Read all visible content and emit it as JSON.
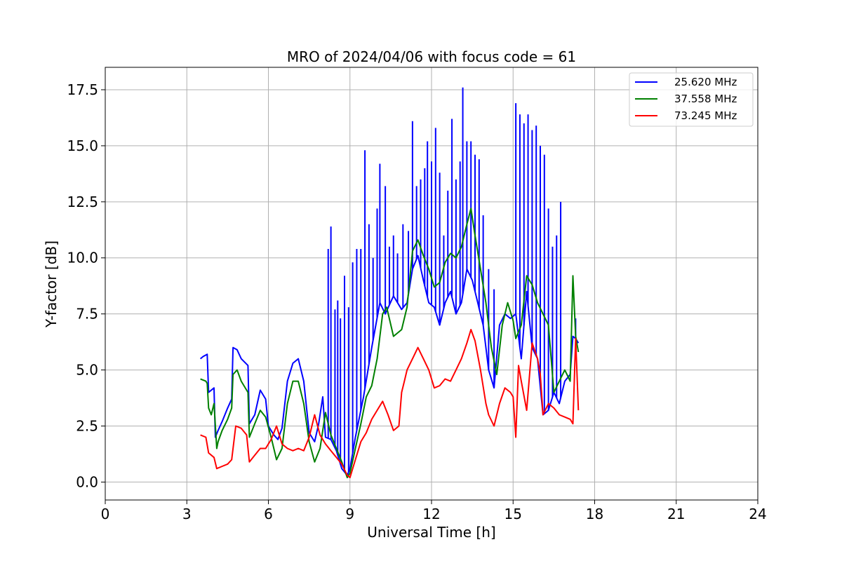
{
  "chart_data": {
    "type": "line",
    "title": "MRO of 2024/04/06 with focus code = 61",
    "xlabel": "Universal Time [h]",
    "ylabel": "Y-factor [dB]",
    "xlim": [
      0,
      24
    ],
    "ylim": [
      -0.8,
      18.5
    ],
    "xticks": [
      0,
      3,
      6,
      9,
      12,
      15,
      18,
      21,
      24
    ],
    "yticks": [
      0.0,
      2.5,
      5.0,
      7.5,
      10.0,
      12.5,
      15.0,
      17.5
    ],
    "xtick_labels": [
      "0",
      "3",
      "6",
      "9",
      "12",
      "15",
      "18",
      "21",
      "24"
    ],
    "ytick_labels": [
      "0.0",
      "2.5",
      "5.0",
      "7.5",
      "10.0",
      "12.5",
      "15.0",
      "17.5"
    ],
    "grid": true,
    "legend_position": "top-right",
    "series": [
      {
        "name": "25.620 MHz",
        "color": "#0000ff",
        "x": [
          3.5,
          3.6,
          3.75,
          3.8,
          4.0,
          4.05,
          4.15,
          4.3,
          4.5,
          4.65,
          4.7,
          4.85,
          5.0,
          5.25,
          5.3,
          5.5,
          5.7,
          5.9,
          6.0,
          6.2,
          6.35,
          6.5,
          6.7,
          6.9,
          7.1,
          7.3,
          7.5,
          7.7,
          7.85,
          8.0,
          8.1,
          8.3,
          8.5,
          8.7,
          8.9,
          9.0,
          9.2,
          9.5,
          9.8,
          10.1,
          10.3,
          10.6,
          10.9,
          11.1,
          11.3,
          11.5,
          11.7,
          11.9,
          12.1,
          12.3,
          12.5,
          12.7,
          12.9,
          13.1,
          13.3,
          13.5,
          13.7,
          13.9,
          14.1,
          14.3,
          14.5,
          14.7,
          14.9,
          15.1,
          15.3,
          15.5,
          15.7,
          15.9,
          16.1,
          16.3,
          16.5,
          16.7,
          16.9,
          17.1,
          17.2,
          17.3,
          17.4
        ],
        "y": [
          5.5,
          5.6,
          5.7,
          4.0,
          4.2,
          2.0,
          2.3,
          2.7,
          3.3,
          3.7,
          6.0,
          5.9,
          5.5,
          5.2,
          2.6,
          3.0,
          4.1,
          3.7,
          2.5,
          2.1,
          1.9,
          2.4,
          4.5,
          5.3,
          5.5,
          4.5,
          2.2,
          1.8,
          2.6,
          3.8,
          2.0,
          1.9,
          1.4,
          0.6,
          0.3,
          0.6,
          2.0,
          3.8,
          6.0,
          8.0,
          7.5,
          8.3,
          7.7,
          8.0,
          9.5,
          10.1,
          9.0,
          8.0,
          7.8,
          7.0,
          8.0,
          8.5,
          7.5,
          8.0,
          9.5,
          9.0,
          8.0,
          7.0,
          5.0,
          4.2,
          7.0,
          7.5,
          7.3,
          7.5,
          5.5,
          8.5,
          6.0,
          5.5,
          3.0,
          3.2,
          4.0,
          3.5,
          4.5,
          4.8,
          6.5,
          6.4,
          6.2
        ],
        "spikes": [
          {
            "x": 8.2,
            "y": 10.4
          },
          {
            "x": 8.3,
            "y": 11.4
          },
          {
            "x": 8.45,
            "y": 7.7
          },
          {
            "x": 8.55,
            "y": 8.1
          },
          {
            "x": 8.65,
            "y": 7.3
          },
          {
            "x": 8.8,
            "y": 9.2
          },
          {
            "x": 8.95,
            "y": 7.8
          },
          {
            "x": 9.1,
            "y": 9.8
          },
          {
            "x": 9.25,
            "y": 10.4
          },
          {
            "x": 9.4,
            "y": 10.4
          },
          {
            "x": 9.55,
            "y": 14.8
          },
          {
            "x": 9.7,
            "y": 11.5
          },
          {
            "x": 9.85,
            "y": 10.0
          },
          {
            "x": 10.0,
            "y": 12.2
          },
          {
            "x": 10.1,
            "y": 14.2
          },
          {
            "x": 10.3,
            "y": 13.2
          },
          {
            "x": 10.45,
            "y": 10.5
          },
          {
            "x": 10.6,
            "y": 11.0
          },
          {
            "x": 10.75,
            "y": 10.2
          },
          {
            "x": 10.95,
            "y": 11.5
          },
          {
            "x": 11.15,
            "y": 11.2
          },
          {
            "x": 11.3,
            "y": 16.1
          },
          {
            "x": 11.45,
            "y": 13.2
          },
          {
            "x": 11.6,
            "y": 13.5
          },
          {
            "x": 11.75,
            "y": 14.0
          },
          {
            "x": 11.85,
            "y": 15.2
          },
          {
            "x": 12.0,
            "y": 14.3
          },
          {
            "x": 12.15,
            "y": 15.8
          },
          {
            "x": 12.3,
            "y": 13.8
          },
          {
            "x": 12.45,
            "y": 11.0
          },
          {
            "x": 12.6,
            "y": 13.0
          },
          {
            "x": 12.75,
            "y": 16.2
          },
          {
            "x": 12.9,
            "y": 13.5
          },
          {
            "x": 13.05,
            "y": 14.3
          },
          {
            "x": 13.15,
            "y": 17.6
          },
          {
            "x": 13.3,
            "y": 15.2
          },
          {
            "x": 13.45,
            "y": 15.2
          },
          {
            "x": 13.6,
            "y": 14.6
          },
          {
            "x": 13.75,
            "y": 14.4
          },
          {
            "x": 13.9,
            "y": 11.9
          },
          {
            "x": 14.1,
            "y": 9.5
          },
          {
            "x": 14.3,
            "y": 8.6
          },
          {
            "x": 15.1,
            "y": 16.9
          },
          {
            "x": 15.25,
            "y": 16.4
          },
          {
            "x": 15.4,
            "y": 16.0
          },
          {
            "x": 15.55,
            "y": 16.4
          },
          {
            "x": 15.7,
            "y": 15.7
          },
          {
            "x": 15.85,
            "y": 15.9
          },
          {
            "x": 16.0,
            "y": 15.0
          },
          {
            "x": 16.15,
            "y": 14.6
          },
          {
            "x": 16.3,
            "y": 12.2
          },
          {
            "x": 16.45,
            "y": 10.5
          },
          {
            "x": 16.6,
            "y": 11.0
          },
          {
            "x": 16.75,
            "y": 12.5
          },
          {
            "x": 17.3,
            "y": 7.3
          }
        ]
      },
      {
        "name": "37.558 MHz",
        "color": "#008000",
        "x": [
          3.5,
          3.7,
          3.75,
          3.8,
          3.9,
          4.0,
          4.1,
          4.15,
          4.3,
          4.5,
          4.65,
          4.7,
          4.85,
          5.0,
          5.25,
          5.3,
          5.5,
          5.7,
          5.9,
          6.1,
          6.3,
          6.5,
          6.7,
          6.9,
          7.1,
          7.3,
          7.5,
          7.7,
          7.9,
          8.1,
          8.3,
          8.5,
          8.7,
          8.9,
          9.0,
          9.2,
          9.4,
          9.6,
          9.8,
          10.0,
          10.2,
          10.35,
          10.6,
          10.9,
          11.1,
          11.3,
          11.5,
          11.7,
          11.9,
          12.1,
          12.3,
          12.5,
          12.7,
          12.9,
          13.1,
          13.3,
          13.45,
          13.6,
          13.8,
          14.0,
          14.2,
          14.4,
          14.6,
          14.8,
          15.0,
          15.1,
          15.3,
          15.5,
          15.7,
          15.9,
          16.1,
          16.3,
          16.5,
          16.7,
          16.9,
          17.1,
          17.2,
          17.3,
          17.4
        ],
        "y": [
          4.6,
          4.5,
          4.4,
          3.3,
          3.0,
          3.5,
          1.5,
          1.8,
          2.3,
          2.8,
          3.3,
          4.8,
          5.0,
          4.5,
          4.0,
          2.0,
          2.6,
          3.2,
          2.9,
          2.0,
          1.0,
          1.5,
          3.5,
          4.5,
          4.5,
          3.5,
          1.8,
          0.9,
          1.5,
          3.1,
          2.1,
          1.5,
          0.9,
          0.2,
          0.4,
          1.5,
          2.6,
          3.8,
          4.3,
          5.5,
          7.5,
          7.8,
          6.5,
          6.8,
          7.8,
          10.3,
          10.8,
          10.1,
          9.5,
          8.7,
          8.9,
          9.8,
          10.2,
          10.0,
          10.5,
          11.5,
          12.2,
          11.0,
          9.5,
          8.0,
          6.0,
          4.8,
          7.0,
          8.0,
          7.2,
          6.4,
          7.0,
          9.2,
          8.8,
          8.0,
          7.5,
          7.0,
          4.0,
          4.5,
          5.0,
          4.5,
          9.2,
          6.5,
          5.8
        ]
      },
      {
        "name": "73.245 MHz",
        "color": "#ff0000",
        "x": [
          3.5,
          3.7,
          3.8,
          4.0,
          4.1,
          4.3,
          4.5,
          4.65,
          4.8,
          5.0,
          5.2,
          5.3,
          5.5,
          5.7,
          5.9,
          6.1,
          6.3,
          6.5,
          6.7,
          6.9,
          7.1,
          7.3,
          7.5,
          7.7,
          7.9,
          8.1,
          8.3,
          8.5,
          8.7,
          8.9,
          9.0,
          9.2,
          9.4,
          9.6,
          9.8,
          10.0,
          10.2,
          10.4,
          10.6,
          10.8,
          10.9,
          11.0,
          11.1,
          11.3,
          11.5,
          11.7,
          11.9,
          12.1,
          12.3,
          12.5,
          12.7,
          12.9,
          13.1,
          13.3,
          13.45,
          13.6,
          13.8,
          14.0,
          14.1,
          14.3,
          14.5,
          14.7,
          14.9,
          15.0,
          15.1,
          15.2,
          15.3,
          15.5,
          15.7,
          15.9,
          16.0,
          16.1,
          16.3,
          16.5,
          16.7,
          16.9,
          17.1,
          17.2,
          17.3,
          17.4
        ],
        "y": [
          2.1,
          2.0,
          1.3,
          1.1,
          0.6,
          0.7,
          0.8,
          1.0,
          2.5,
          2.4,
          2.1,
          0.9,
          1.2,
          1.5,
          1.5,
          1.9,
          2.5,
          1.7,
          1.5,
          1.4,
          1.5,
          1.4,
          2.0,
          3.0,
          2.1,
          1.7,
          1.4,
          1.1,
          0.8,
          0.3,
          0.2,
          1.0,
          1.8,
          2.2,
          2.8,
          3.2,
          3.6,
          3.0,
          2.3,
          2.5,
          4.0,
          4.5,
          5.0,
          5.5,
          6.0,
          5.5,
          5.0,
          4.2,
          4.3,
          4.6,
          4.5,
          5.0,
          5.5,
          6.2,
          6.8,
          6.3,
          5.0,
          3.5,
          3.0,
          2.5,
          3.5,
          4.2,
          4.0,
          3.8,
          2.0,
          5.2,
          4.5,
          3.2,
          6.2,
          5.5,
          4.8,
          3.0,
          3.5,
          3.3,
          3.0,
          2.9,
          2.8,
          2.6,
          6.4,
          3.2
        ]
      }
    ]
  }
}
